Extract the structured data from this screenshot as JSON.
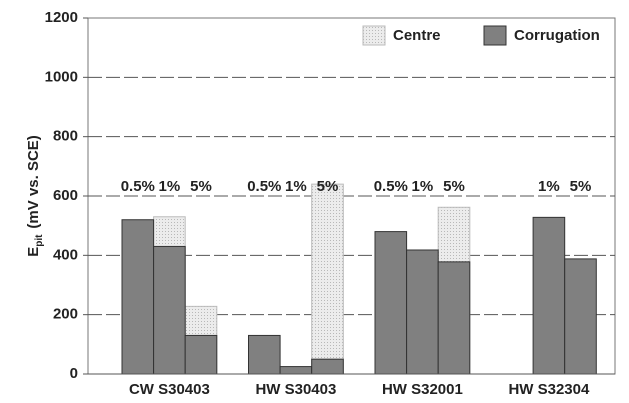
{
  "chart_data": {
    "type": "bar",
    "ylabel": "E",
    "ylabel_sub": "pit",
    "ylabel_rest": "(mV vs. SCE)",
    "groups": [
      "CW S30403",
      "HW S30403",
      "HW S32001",
      "HW S32304"
    ],
    "categories": [
      "0.5%",
      "1%",
      "5%",
      "0.5%",
      "1%",
      "5%",
      "0.5%",
      "1%",
      "5%",
      null,
      "1%",
      "5%"
    ],
    "series": [
      {
        "name": "Centre",
        "color": "#e4e4e4",
        "values": [
          null,
          530,
          228,
          null,
          null,
          640,
          null,
          null,
          562,
          null,
          null,
          null
        ]
      },
      {
        "name": "Corrugation",
        "color": "#808080",
        "values": [
          520,
          430,
          130,
          130,
          25,
          50,
          480,
          418,
          378,
          null,
          528,
          388
        ]
      }
    ],
    "ylim": [
      0,
      1200
    ],
    "yticks": [
      0,
      200,
      400,
      600,
      800,
      1000,
      1200
    ],
    "grid": true,
    "legend": "upper right"
  }
}
